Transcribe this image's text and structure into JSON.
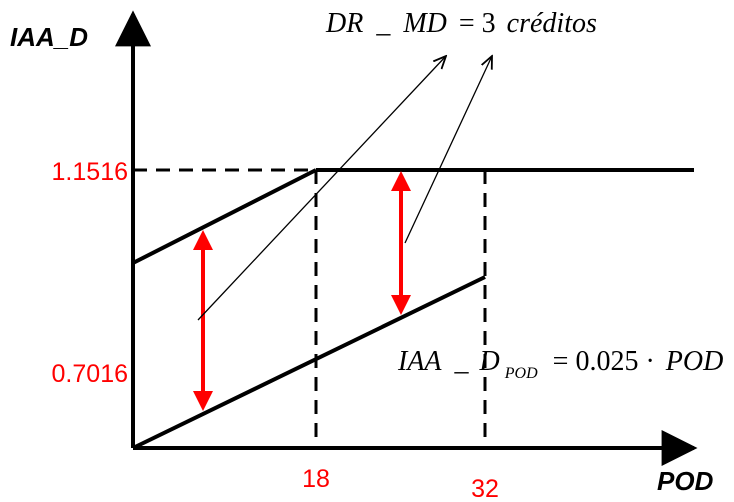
{
  "axes": {
    "y_title": "IAA_D",
    "x_title": "POD"
  },
  "ticks": {
    "y_upper": "1.1516",
    "y_lower": "0.7016",
    "x_first": "18",
    "x_second": "32"
  },
  "annotation": {
    "dr_lhs": "DR",
    "dr_sep": "_",
    "dr_mid": "MD",
    "dr_eq": "= 3",
    "dr_unit": "créditos"
  },
  "formula": {
    "lhs": "IAA",
    "sep": "_",
    "d": "D",
    "sub": "POD",
    "eq": "= 0.025 ·",
    "rhs": "POD"
  },
  "colors": {
    "axis": "#000000",
    "label_red": "#ff0000",
    "arrow_red": "#ff0000"
  }
}
